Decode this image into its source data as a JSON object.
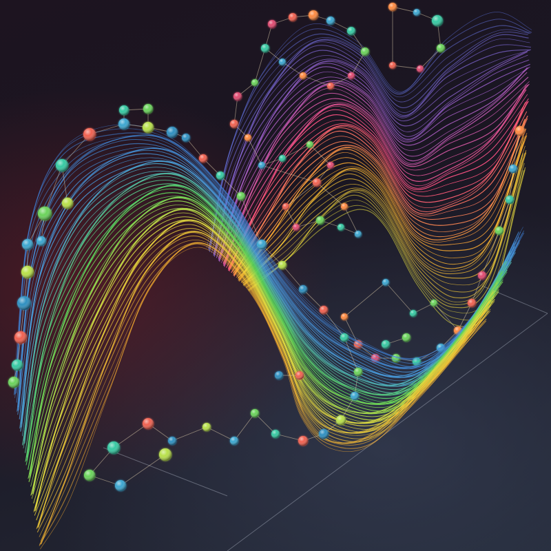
{
  "scene": {
    "background_colors": [
      "#1d1420",
      "#242a38",
      "#7a1e28"
    ],
    "strand_palette": [
      "#3f7fd8",
      "#4aa0e0",
      "#6fd0ff",
      "#5ad35a",
      "#e8e040",
      "#ffb030",
      "#ff7a3a",
      "#ff5080",
      "#c060e0",
      "#7050d0"
    ],
    "node_palette": [
      "#3aa6d0",
      "#36c9a2",
      "#6bd35a",
      "#b8e04a",
      "#f06050",
      "#ff8a40",
      "#e04a70"
    ],
    "ribbons": [
      {
        "id": "front-ribbon",
        "strand_count": 70,
        "colors": [
          "#3f7fd8",
          "#4aa0e0",
          "#5ad35a",
          "#e8e040",
          "#ffb030"
        ]
      },
      {
        "id": "back-ribbon",
        "strand_count": 60,
        "colors": [
          "#5a70d8",
          "#a060d0",
          "#ff5080",
          "#ffb030",
          "#e8e040"
        ]
      }
    ]
  }
}
